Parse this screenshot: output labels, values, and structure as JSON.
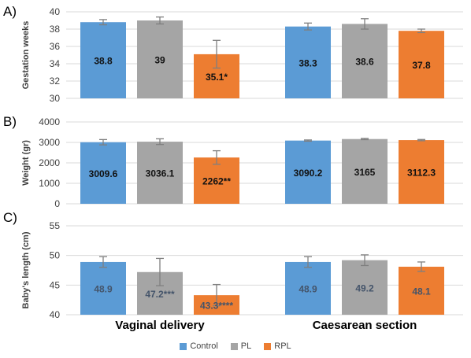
{
  "chart_data": [
    {
      "panel_label": "A)",
      "type": "bar",
      "ylabel": "Gestation weeks",
      "ylim": [
        30,
        40
      ],
      "yticks": [
        30,
        32,
        34,
        36,
        38,
        40
      ],
      "groups": [
        "Vaginal delivery",
        "Caesarean section"
      ],
      "series": [
        {
          "name": "Control",
          "values": [
            38.8,
            38.3
          ],
          "errors": [
            0.3,
            0.4
          ],
          "labels": [
            "38.8",
            "38.3"
          ]
        },
        {
          "name": "PL",
          "values": [
            39.0,
            38.6
          ],
          "errors": [
            0.4,
            0.6
          ],
          "labels": [
            "39",
            "38.6"
          ]
        },
        {
          "name": "RPL",
          "values": [
            35.1,
            37.8
          ],
          "errors": [
            1.6,
            0.2
          ],
          "labels": [
            "35.1*",
            "37.8"
          ]
        }
      ]
    },
    {
      "panel_label": "B)",
      "type": "bar",
      "ylabel": "Weight (gr)",
      "ylim": [
        0,
        4000
      ],
      "yticks": [
        0,
        1000,
        2000,
        3000,
        4000
      ],
      "groups": [
        "Vaginal delivery",
        "Caesarean section"
      ],
      "series": [
        {
          "name": "Control",
          "values": [
            3009.6,
            3090.2
          ],
          "errors": [
            130,
            30
          ],
          "labels": [
            "3009.6",
            "3090.2"
          ]
        },
        {
          "name": "PL",
          "values": [
            3036.1,
            3165
          ],
          "errors": [
            140,
            30
          ],
          "labels": [
            "3036.1",
            "3165"
          ]
        },
        {
          "name": "RPL",
          "values": [
            2262,
            3112.3
          ],
          "errors": [
            330,
            30
          ],
          "labels": [
            "2262**",
            "3112.3"
          ]
        }
      ]
    },
    {
      "panel_label": "C)",
      "type": "bar",
      "ylabel": "Baby's length (cm)",
      "ylim": [
        40,
        55
      ],
      "yticks": [
        40,
        45,
        50,
        55
      ],
      "groups": [
        "Vaginal delivery",
        "Caesarean section"
      ],
      "series": [
        {
          "name": "Control",
          "values": [
            48.9,
            48.9
          ],
          "errors": [
            0.9,
            0.9
          ],
          "labels": [
            "48.9",
            "48.9"
          ]
        },
        {
          "name": "PL",
          "values": [
            47.2,
            49.2
          ],
          "errors": [
            2.3,
            0.9
          ],
          "labels": [
            "47.2***",
            "49.2"
          ]
        },
        {
          "name": "RPL",
          "values": [
            43.3,
            48.1
          ],
          "errors": [
            1.8,
            0.8
          ],
          "labels": [
            "43.3****",
            "48.1"
          ]
        }
      ]
    }
  ],
  "legend": [
    {
      "name": "Control",
      "color": "#5b9bd5"
    },
    {
      "name": "PL",
      "color": "#a5a5a5"
    },
    {
      "name": "RPL",
      "color": "#ed7d31"
    }
  ],
  "colors": {
    "control": "#5b9bd5",
    "pl": "#a5a5a5",
    "rpl": "#ed7d31",
    "grid": "#d9d9d9",
    "error": "#7f7f7f"
  }
}
